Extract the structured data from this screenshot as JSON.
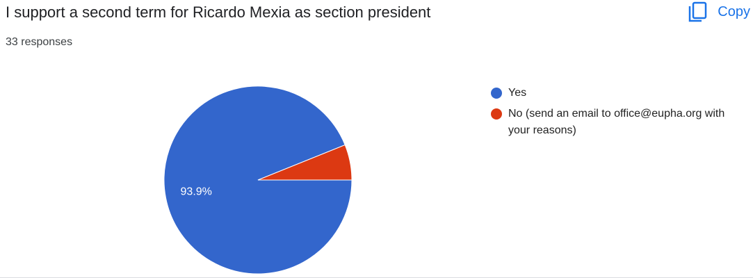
{
  "chart_data": {
    "type": "pie",
    "title": "I support a second term for Ricardo Mexia as section president",
    "subtitle": "33 responses",
    "categories": [
      "Yes",
      "No (send an email to office@eupha.org with your reasons)"
    ],
    "values": [
      93.9,
      6.1
    ],
    "value_labels": [
      "93.9%",
      null
    ],
    "colors": [
      "#3366cc",
      "#dc3912"
    ],
    "legend": "right"
  },
  "button": {
    "label": "Copy"
  }
}
